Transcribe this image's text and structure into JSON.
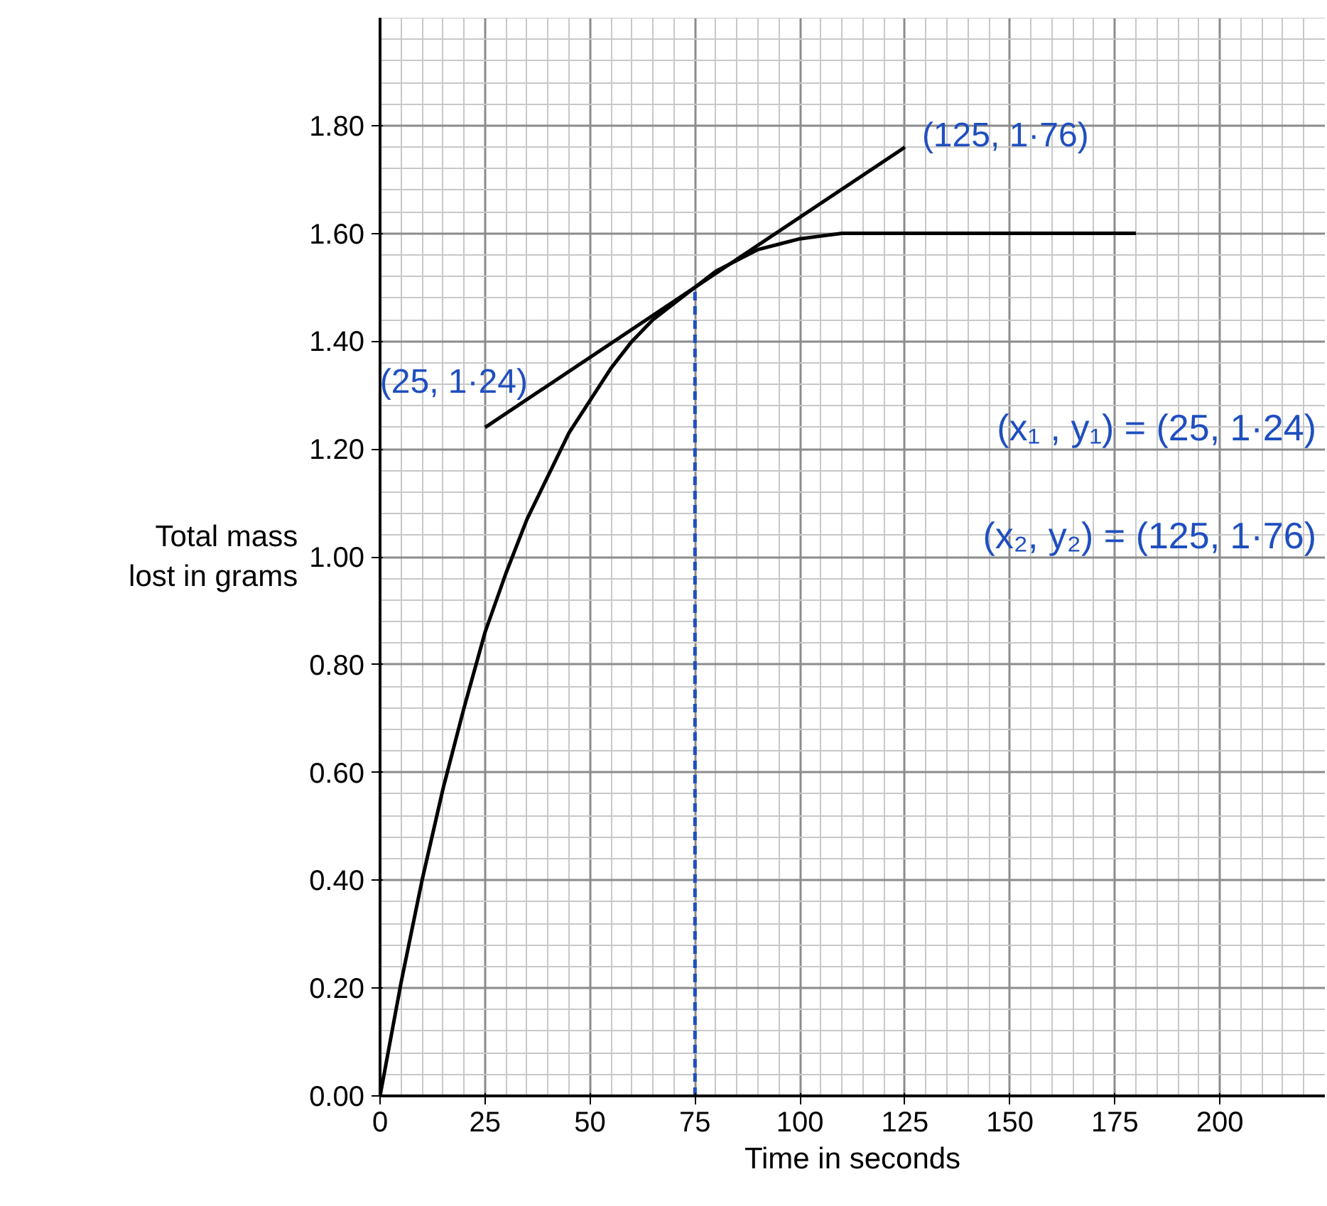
{
  "chart_data": {
    "type": "line",
    "xlabel": "Time in seconds",
    "ylabel": "Total mass lost in grams",
    "xlim": [
      0,
      225
    ],
    "ylim": [
      0,
      2.0
    ],
    "xticks": [
      0,
      25,
      50,
      75,
      100,
      125,
      150,
      175,
      200
    ],
    "yticks": [
      {
        "value": 0,
        "label": "0.00"
      },
      {
        "value": 0.2,
        "label": "0.20"
      },
      {
        "value": 0.4,
        "label": "0.40"
      },
      {
        "value": 0.6,
        "label": "0.60"
      },
      {
        "value": 0.8,
        "label": "0.80"
      },
      {
        "value": 1.0,
        "label": "1.00"
      },
      {
        "value": 1.2,
        "label": "1.20"
      },
      {
        "value": 1.4,
        "label": "1.40"
      },
      {
        "value": 1.6,
        "label": "1.60"
      },
      {
        "value": 1.8,
        "label": "1.80"
      }
    ],
    "grid": true,
    "marker": "none",
    "series": [
      {
        "color": "#000000",
        "line_style": "solid",
        "x": [
          0,
          5,
          10,
          15,
          20,
          25,
          30,
          35,
          40,
          45,
          50,
          55,
          60,
          65,
          70,
          75,
          80,
          85,
          90,
          95,
          100,
          105,
          110,
          115,
          120,
          140,
          160,
          180
        ],
        "values": [
          0,
          0.21,
          0.4,
          0.57,
          0.72,
          0.86,
          0.97,
          1.07,
          1.15,
          1.23,
          1.29,
          1.35,
          1.4,
          1.44,
          1.47,
          1.5,
          1.53,
          1.55,
          1.57,
          1.58,
          1.59,
          1.595,
          1.6,
          1.6,
          1.6,
          1.6,
          1.6,
          1.6
        ]
      },
      {
        "color": "#000000",
        "line_style": "solid",
        "x": [
          25,
          125
        ],
        "values": [
          1.24,
          1.76
        ]
      },
      {
        "color": "#1f4fbf",
        "line_style": "dashed",
        "x": [
          75,
          75
        ],
        "values": [
          0,
          1.5
        ]
      }
    ],
    "annotations": [
      {
        "text": "(125, 1·76)",
        "x": 125,
        "y": 1.76
      },
      {
        "text": "(25, 1·24)",
        "x": 25,
        "y": 1.24
      },
      "(x₁ , y₁) = (25, 1·24)",
      "(x₂, y₂) = (125, 1·76)"
    ]
  }
}
